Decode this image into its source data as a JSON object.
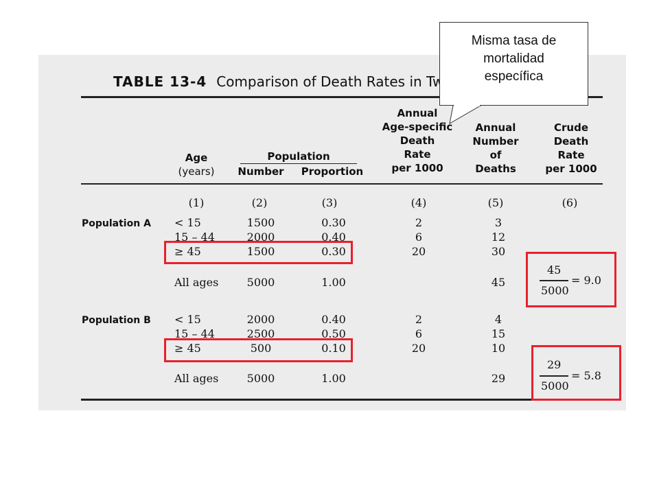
{
  "bubble": {
    "line1": "Misma tasa de",
    "line2": "mortalidad",
    "line3": "específica"
  },
  "title": {
    "number": "TABLE 13-4",
    "text": "Comparison of Death Rates in Two"
  },
  "headers": {
    "age": [
      "Age",
      "(years)"
    ],
    "population": "Population",
    "number": "Number",
    "proportion": "Proportion",
    "asdr": [
      "Annual",
      "Age-specific",
      "Death",
      "Rate",
      "per 1000"
    ],
    "deaths": [
      "Annual",
      "Number",
      "of",
      "Deaths"
    ],
    "crude": [
      "Crude",
      "Death",
      "Rate",
      "per 1000"
    ]
  },
  "colnums": [
    "(1)",
    "(2)",
    "(3)",
    "(4)",
    "(5)",
    "(6)"
  ],
  "popA": {
    "label": "Population A",
    "rows": [
      {
        "age": "< 15",
        "number": "1500",
        "prop": "0.30",
        "rate": "2",
        "deaths": "3"
      },
      {
        "age": "15 – 44",
        "number": "2000",
        "prop": "0.40",
        "rate": "6",
        "deaths": "12"
      },
      {
        "age": "≥ 45",
        "number": "1500",
        "prop": "0.30",
        "rate": "20",
        "deaths": "30"
      }
    ],
    "all": {
      "age": "All ages",
      "number": "5000",
      "prop": "1.00",
      "deaths": "45"
    },
    "crude": {
      "num": "45",
      "den": "5000",
      "result": "= 9.0"
    }
  },
  "popB": {
    "label": "Population B",
    "rows": [
      {
        "age": "< 15",
        "number": "2000",
        "prop": "0.40",
        "rate": "2",
        "deaths": "4"
      },
      {
        "age": "15 – 44",
        "number": "2500",
        "prop": "0.50",
        "rate": "6",
        "deaths": "15"
      },
      {
        "age": "≥ 45",
        "number": "500",
        "prop": "0.10",
        "rate": "20",
        "deaths": "10"
      }
    ],
    "all": {
      "age": "All ages",
      "number": "5000",
      "prop": "1.00",
      "deaths": "29"
    },
    "crude": {
      "num": "29",
      "den": "5000",
      "result": "= 5.8"
    }
  },
  "colors": {
    "highlight": "#e8202c",
    "scan_bg": "#ececec"
  }
}
